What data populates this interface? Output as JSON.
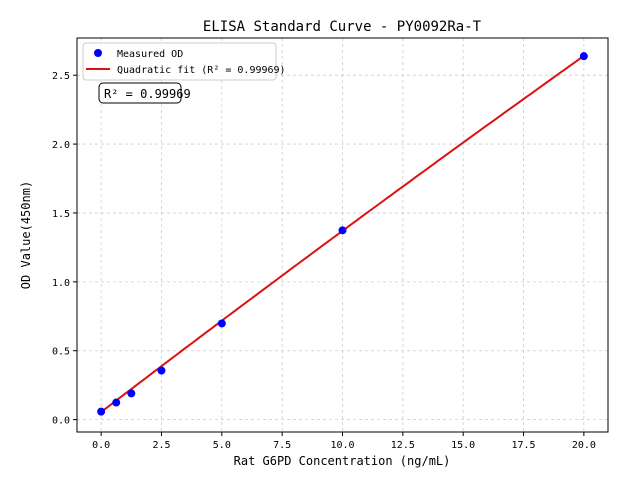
{
  "chart_data": {
    "type": "scatter",
    "title": "ELISA Standard Curve - PY0092Ra-T",
    "xlabel": "Rat G6PD Concentration (ng/mL)",
    "ylabel": "OD Value(450nm)",
    "xlim": [
      -1,
      21
    ],
    "ylim": [
      -0.09,
      2.77
    ],
    "xticks": [
      0,
      2.5,
      5,
      7.5,
      10,
      12.5,
      15,
      17.5,
      20
    ],
    "xtick_labels": [
      "0.0",
      "2.5",
      "5.0",
      "7.5",
      "10.0",
      "12.5",
      "15.0",
      "17.5",
      "20.0"
    ],
    "yticks": [
      0,
      0.5,
      1,
      1.5,
      2,
      2.5
    ],
    "ytick_labels": [
      "0.0",
      "0.5",
      "1.0",
      "1.5",
      "2.0",
      "2.5"
    ],
    "grid": true,
    "legend_position": "top-left",
    "series": [
      {
        "name": "Measured OD",
        "kind": "scatter",
        "color": "#0000ff",
        "x": [
          0,
          0.625,
          1.25,
          2.5,
          5,
          10,
          20
        ],
        "y": [
          0.058,
          0.124,
          0.19,
          0.356,
          0.698,
          1.374,
          2.638
        ]
      },
      {
        "name": "Quadratic fit (R² = 0.99969)",
        "kind": "line",
        "color": "#dd1111",
        "coefficients": {
          "a": 0.055,
          "b": 0.13375,
          "c": -0.000225
        }
      }
    ],
    "annotation": "R² = 0.99969"
  }
}
